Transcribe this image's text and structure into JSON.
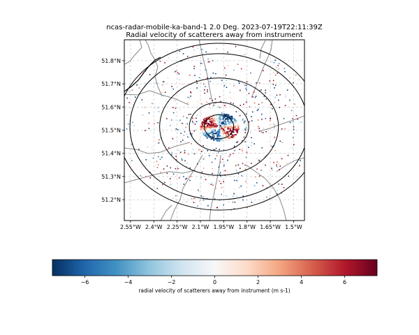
{
  "title_lines": [
    "ncas-radar-mobile-ka-band-1 2.0 Deg. 2023-07-19T22:11:39Z",
    "Radial velocity of scatterers away from instrument"
  ],
  "chart_data": {
    "type": "scatter",
    "subtype": "radar-ppi-map",
    "title": "ncas-radar-mobile-ka-band-1 2.0 Deg. 2023-07-19T22:11:39Z\nRadial velocity of scatterers away from instrument",
    "x_axis": {
      "range": [
        -2.59,
        -1.43
      ],
      "ticks": [
        -2.55,
        -2.4,
        -2.25,
        -2.1,
        -1.95,
        -1.8,
        -1.65,
        -1.5
      ],
      "tick_labels": [
        "2.55°W",
        "2.4°W",
        "2.25°W",
        "2.1°W",
        "1.95°W",
        "1.8°W",
        "1.65°W",
        "1.5°W"
      ]
    },
    "y_axis": {
      "range": [
        51.11,
        51.89
      ],
      "ticks": [
        51.2,
        51.3,
        51.4,
        51.5,
        51.6,
        51.7,
        51.8
      ],
      "tick_labels": [
        "51.2°N",
        "51.3°N",
        "51.4°N",
        "51.5°N",
        "51.6°N",
        "51.7°N",
        "51.8°N"
      ]
    },
    "grid": true,
    "radar_center": {
      "lon": -1.98,
      "lat": 51.515
    },
    "range_rings_lat_radius": [
      0.052,
      0.105,
      0.21,
      0.315,
      0.36
    ],
    "colorbar": {
      "label": "radial velocity of scatterers away from instrument (m s-1)",
      "range": [
        -7.5,
        7.5
      ],
      "ticks": [
        -6,
        -4,
        -2,
        0,
        2,
        4,
        6
      ],
      "tick_labels": [
        "−6",
        "−4",
        "−2",
        "0",
        "2",
        "4",
        "6"
      ],
      "colormap": "RdBu_r",
      "orientation": "horizontal",
      "location": "bottom"
    },
    "colors": {
      "map_lines": "#888888",
      "coastline": "#000000",
      "grid": "#bbbbbb",
      "range_rings": "#000000"
    }
  }
}
